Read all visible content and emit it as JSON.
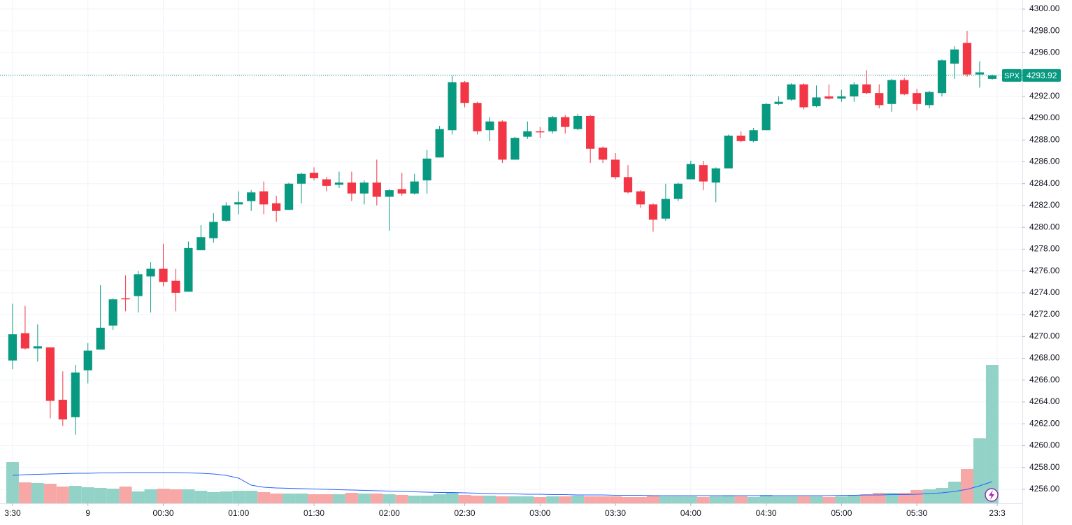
{
  "chart_data": {
    "type": "candlestick",
    "symbol": "SPX",
    "up_color": "#089981",
    "down_color": "#f23645",
    "volume_up_color": "#92d2c7",
    "volume_down_color": "#f7a7a5",
    "ma_color": "#2962ff",
    "grid": true,
    "ylim": [
      4254.71,
      4300.83
    ],
    "yticks": [
      {
        "value": 4256,
        "label": "4256.00"
      },
      {
        "value": 4258,
        "label": "4258.00"
      },
      {
        "value": 4260,
        "label": "4260.00"
      },
      {
        "value": 4262,
        "label": "4262.00"
      },
      {
        "value": 4264,
        "label": "4264.00"
      },
      {
        "value": 4266,
        "label": "4266.00"
      },
      {
        "value": 4268,
        "label": "4268.00"
      },
      {
        "value": 4270,
        "label": "4270.00"
      },
      {
        "value": 4272,
        "label": "4272.00"
      },
      {
        "value": 4274,
        "label": "4274.00"
      },
      {
        "value": 4276,
        "label": "4276.00"
      },
      {
        "value": 4278,
        "label": "4278.00"
      },
      {
        "value": 4280,
        "label": "4280.00"
      },
      {
        "value": 4282,
        "label": "4282.00"
      },
      {
        "value": 4284,
        "label": "4284.00"
      },
      {
        "value": 4286,
        "label": "4286.00"
      },
      {
        "value": 4288,
        "label": "4288.00"
      },
      {
        "value": 4290,
        "label": "4290.00"
      },
      {
        "value": 4292,
        "label": "4292.00"
      },
      {
        "value": 4294,
        "label": "4294.00"
      },
      {
        "value": 4296,
        "label": "4296.00"
      },
      {
        "value": 4298,
        "label": "4298.00"
      },
      {
        "value": 4300,
        "label": "4300.00"
      }
    ],
    "xlim": [
      -1,
      80.4
    ],
    "xticks": [
      {
        "value": 0,
        "label": "3:30"
      },
      {
        "value": 6,
        "label": "9"
      },
      {
        "value": 12,
        "label": "00:30"
      },
      {
        "value": 18,
        "label": "01:00"
      },
      {
        "value": 24,
        "label": "01:30"
      },
      {
        "value": 30,
        "label": "02:00"
      },
      {
        "value": 36,
        "label": "02:30"
      },
      {
        "value": 42,
        "label": "03:00"
      },
      {
        "value": 48,
        "label": "03:30"
      },
      {
        "value": 54,
        "label": "04:00"
      },
      {
        "value": 60,
        "label": "04:30"
      },
      {
        "value": 66,
        "label": "05:00"
      },
      {
        "value": 72,
        "label": "05:30"
      },
      {
        "value": 78.4,
        "label": "23:3"
      }
    ],
    "open": [
      4267.8,
      4270.3,
      4268.9,
      4269.0,
      4264.2,
      4262.6,
      4266.9,
      4268.8,
      4271.0,
      4273.5,
      4273.7,
      4275.5,
      4276.2,
      4275.1,
      4274.1,
      4277.9,
      4279.0,
      4280.6,
      4282.1,
      4282.4,
      4283.3,
      4282.2,
      4281.6,
      4284.0,
      4285.0,
      4284.4,
      4283.9,
      4284.1,
      4283.1,
      4284.1,
      4282.8,
      4283.5,
      4283.1,
      4284.3,
      4286.4,
      4288.9,
      4293.3,
      4291.4,
      4288.9,
      4289.7,
      4286.2,
      4288.3,
      4288.8,
      4288.8,
      4290.1,
      4289.0,
      4290.2,
      4287.3,
      4286.2,
      4284.6,
      4283.3,
      4282.1,
      4280.8,
      4282.6,
      4284.4,
      4285.7,
      4284.1,
      4285.4,
      4288.4,
      4287.9,
      4288.9,
      4291.3,
      4291.7,
      4293.1,
      4291.1,
      4292.0,
      4291.8,
      4292.0,
      4293.1,
      4292.3,
      4291.3,
      4293.5,
      4292.3,
      4291.2,
      4292.3,
      4295.0,
      4296.9,
      4294.0,
      4293.6
    ],
    "high": [
      4273.0,
      4272.8,
      4271.1,
      4269.0,
      4266.8,
      4267.4,
      4269.4,
      4274.7,
      4273.5,
      4275.6,
      4276.0,
      4276.8,
      4278.5,
      4276.2,
      4278.7,
      4280.2,
      4281.3,
      4282.3,
      4283.3,
      4283.4,
      4284.2,
      4282.9,
      4284.1,
      4285.0,
      4285.5,
      4284.6,
      4285.1,
      4285.1,
      4284.3,
      4286.2,
      4283.5,
      4285.0,
      4284.9,
      4287.1,
      4289.3,
      4293.9,
      4293.4,
      4291.5,
      4290.1,
      4289.8,
      4288.3,
      4289.7,
      4289.2,
      4290.2,
      4290.3,
      4290.4,
      4290.3,
      4287.4,
      4286.8,
      4285.7,
      4283.4,
      4282.2,
      4284.0,
      4284.1,
      4286.1,
      4286.1,
      4285.5,
      4288.5,
      4288.8,
      4289.1,
      4291.4,
      4292.0,
      4293.2,
      4293.2,
      4293.0,
      4293.1,
      4292.6,
      4293.3,
      4294.4,
      4293.1,
      4293.6,
      4293.7,
      4292.7,
      4292.5,
      4295.4,
      4296.6,
      4298.0,
      4295.2,
      4294.0
    ],
    "low": [
      4267.0,
      4268.8,
      4267.7,
      4262.5,
      4261.8,
      4261.0,
      4265.7,
      4268.8,
      4270.6,
      4272.3,
      4272.2,
      4272.2,
      4274.6,
      4272.3,
      4274.1,
      4277.9,
      4278.6,
      4280.5,
      4281.2,
      4281.5,
      4281.2,
      4280.5,
      4281.6,
      4282.2,
      4284.3,
      4283.3,
      4283.6,
      4282.4,
      4282.1,
      4282.0,
      4279.7,
      4282.9,
      4283.0,
      4283.1,
      4286.4,
      4288.5,
      4291.0,
      4288.5,
      4287.9,
      4285.9,
      4286.2,
      4288.1,
      4288.2,
      4288.6,
      4288.6,
      4288.9,
      4285.9,
      4285.9,
      4284.4,
      4283.1,
      4281.8,
      4279.6,
      4280.6,
      4282.4,
      4284.4,
      4283.4,
      4282.3,
      4285.4,
      4287.8,
      4287.8,
      4288.9,
      4291.2,
      4291.6,
      4290.8,
      4291.0,
      4291.7,
      4291.5,
      4291.5,
      4292.2,
      4290.9,
      4290.6,
      4292.1,
      4290.7,
      4290.9,
      4292.0,
      4293.6,
      4293.8,
      4292.8,
      4293.5
    ],
    "close": [
      4270.2,
      4268.9,
      4269.1,
      4264.1,
      4262.4,
      4266.7,
      4268.7,
      4270.8,
      4273.4,
      4273.4,
      4275.7,
      4276.2,
      4275.0,
      4274.0,
      4278.1,
      4279.1,
      4280.5,
      4282.0,
      4282.3,
      4283.2,
      4282.1,
      4281.5,
      4284.0,
      4284.9,
      4284.5,
      4283.8,
      4284.1,
      4283.1,
      4284.1,
      4282.8,
      4283.4,
      4283.1,
      4284.2,
      4286.3,
      4289.0,
      4293.3,
      4291.4,
      4288.8,
      4289.7,
      4286.2,
      4288.2,
      4288.8,
      4288.7,
      4290.1,
      4289.2,
      4290.2,
      4287.2,
      4286.2,
      4284.6,
      4283.2,
      4282.1,
      4280.7,
      4282.6,
      4284.0,
      4285.8,
      4284.2,
      4285.4,
      4288.4,
      4287.9,
      4288.9,
      4291.3,
      4291.5,
      4293.1,
      4291.0,
      4291.9,
      4291.8,
      4292.0,
      4293.1,
      4292.3,
      4291.2,
      4293.5,
      4292.2,
      4291.3,
      4292.4,
      4295.3,
      4296.3,
      4294.0,
      4294.2,
      4293.92
    ],
    "volume": [
      59,
      30,
      29,
      28,
      24,
      25,
      23,
      22,
      21,
      24,
      17,
      20,
      21,
      20,
      20,
      18,
      16,
      17,
      18,
      18,
      16,
      14,
      14,
      14,
      13,
      13,
      13,
      15,
      14,
      14,
      13,
      12,
      11,
      11,
      13,
      15,
      12,
      11,
      11,
      10,
      10,
      10,
      9,
      10,
      10,
      11,
      10,
      10,
      10,
      9,
      9,
      11,
      10,
      10,
      10,
      9,
      10,
      11,
      10,
      9,
      12,
      10,
      10,
      10,
      10,
      9,
      10,
      12,
      13,
      15,
      15,
      15,
      19,
      20,
      22,
      31,
      49,
      93,
      198
    ],
    "volume_ma": [
      40,
      41,
      41.5,
      42,
      42.5,
      43,
      43,
      43.5,
      43.5,
      44,
      44,
      44,
      44,
      44,
      43.5,
      43,
      42,
      40,
      36,
      26,
      23,
      22,
      21.5,
      21,
      20.5,
      20,
      19.5,
      19,
      18.5,
      18,
      17.5,
      17,
      16.5,
      16,
      15.5,
      15.5,
      15,
      14.5,
      14,
      13.5,
      13.5,
      13,
      13,
      12.5,
      12.5,
      12,
      12,
      12,
      11.5,
      11.5,
      11.5,
      11,
      11,
      11,
      11,
      11,
      11,
      11,
      11,
      11,
      11,
      11,
      11,
      11,
      11,
      11,
      11.5,
      11.5,
      12,
      12,
      12.5,
      12.5,
      13,
      14,
      15,
      17,
      20,
      25,
      31
    ]
  }
}
